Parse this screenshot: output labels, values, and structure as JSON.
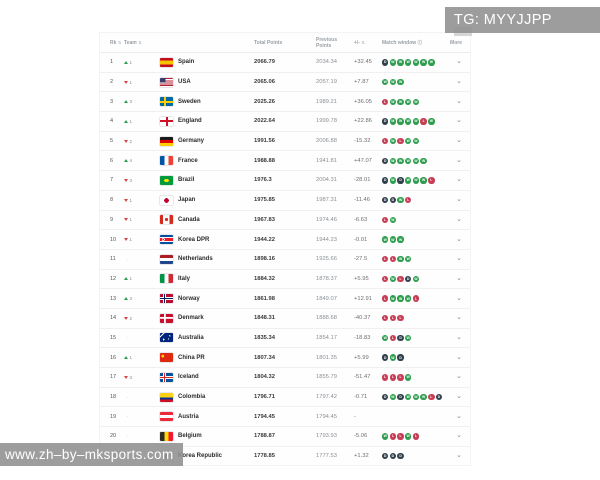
{
  "watermarks": {
    "top_right": "TG: MYYJJPP",
    "bottom_left": "www.zh–by–mksports.com"
  },
  "colors": {
    "win": "#2e9d4e",
    "loss": "#c63d54",
    "draw": "#31404b",
    "up": "#2e9d4e",
    "down": "#d64545"
  },
  "table": {
    "headers": {
      "rank": "Rk",
      "team": "Team",
      "total": "Total Points",
      "previous": "Previous Points",
      "plus_minus": "+/-",
      "window": "Match window",
      "more": "More"
    },
    "rows": [
      {
        "rank": "1",
        "move": "up",
        "move_n": "1",
        "flag": "es",
        "team": "Spain",
        "total": "2066.79",
        "prev": "2034.34",
        "pm": "+32.45",
        "window": [
          "D",
          "W",
          "W",
          "W",
          "W",
          "W",
          "W"
        ]
      },
      {
        "rank": "2",
        "move": "down",
        "move_n": "1",
        "flag": "us",
        "team": "USA",
        "total": "2065.06",
        "prev": "2057.19",
        "pm": "+7.87",
        "window": [
          "W",
          "W",
          "W"
        ]
      },
      {
        "rank": "3",
        "move": "up",
        "move_n": "3",
        "flag": "se",
        "team": "Sweden",
        "total": "2025.26",
        "prev": "1989.21",
        "pm": "+36.05",
        "window": [
          "L",
          "W",
          "W",
          "W",
          "W"
        ]
      },
      {
        "rank": "4",
        "move": "up",
        "move_n": "1",
        "flag": "en",
        "team": "England",
        "total": "2022.64",
        "prev": "1999.78",
        "pm": "+22.86",
        "window": [
          "D",
          "W",
          "W",
          "W",
          "W",
          "L",
          "W"
        ]
      },
      {
        "rank": "5",
        "move": "down",
        "move_n": "2",
        "flag": "de",
        "team": "Germany",
        "total": "1991.56",
        "prev": "2006.88",
        "pm": "-15.32",
        "window": [
          "L",
          "W",
          "L",
          "W",
          "W"
        ]
      },
      {
        "rank": "6",
        "move": "up",
        "move_n": "4",
        "flag": "fr",
        "team": "France",
        "total": "1988.88",
        "prev": "1941.81",
        "pm": "+47.07",
        "window": [
          "D",
          "W",
          "W",
          "W",
          "W",
          "W"
        ]
      },
      {
        "rank": "7",
        "move": "down",
        "move_n": "3",
        "flag": "br",
        "team": "Brazil",
        "total": "1976.3",
        "prev": "2004.31",
        "pm": "-28.01",
        "window": [
          "D",
          "W",
          "D",
          "W",
          "W",
          "W",
          "L"
        ]
      },
      {
        "rank": "8",
        "move": "down",
        "move_n": "1",
        "flag": "jp",
        "team": "Japan",
        "total": "1975.85",
        "prev": "1987.31",
        "pm": "-11.46",
        "window": [
          "D",
          "D",
          "W",
          "L"
        ]
      },
      {
        "rank": "9",
        "move": "down",
        "move_n": "1",
        "flag": "ca",
        "team": "Canada",
        "total": "1967.83",
        "prev": "1974.46",
        "pm": "-6.63",
        "window": [
          "L",
          "W"
        ]
      },
      {
        "rank": "10",
        "move": "down",
        "move_n": "1",
        "flag": "kp",
        "team": "Korea DPR",
        "total": "1944.22",
        "prev": "1944.23",
        "pm": "-0.01",
        "window": [
          "W",
          "W",
          "W"
        ]
      },
      {
        "rank": "11",
        "move": "none",
        "move_n": "",
        "flag": "nl",
        "team": "Netherlands",
        "total": "1898.16",
        "prev": "1925.66",
        "pm": "-27.5",
        "window": [
          "L",
          "L",
          "W",
          "W"
        ]
      },
      {
        "rank": "12",
        "move": "up",
        "move_n": "1",
        "flag": "it",
        "team": "Italy",
        "total": "1884.32",
        "prev": "1878.37",
        "pm": "+5.95",
        "window": [
          "L",
          "W",
          "L",
          "D",
          "W"
        ]
      },
      {
        "rank": "13",
        "move": "up",
        "move_n": "3",
        "flag": "no",
        "team": "Norway",
        "total": "1861.98",
        "prev": "1849.07",
        "pm": "+12.91",
        "window": [
          "L",
          "W",
          "W",
          "W",
          "L"
        ]
      },
      {
        "rank": "14",
        "move": "down",
        "move_n": "2",
        "flag": "dk",
        "team": "Denmark",
        "total": "1848.31",
        "prev": "1888.68",
        "pm": "-40.37",
        "window": [
          "L",
          "L",
          "L"
        ]
      },
      {
        "rank": "15",
        "move": "none",
        "move_n": "",
        "flag": "au",
        "team": "Australia",
        "total": "1835.34",
        "prev": "1854.17",
        "pm": "-18.83",
        "window": [
          "W",
          "L",
          "D",
          "W"
        ]
      },
      {
        "rank": "16",
        "move": "up",
        "move_n": "1",
        "flag": "cn",
        "team": "China PR",
        "total": "1807.34",
        "prev": "1801.35",
        "pm": "+5.99",
        "window": [
          "D",
          "W",
          "D"
        ]
      },
      {
        "rank": "17",
        "move": "down",
        "move_n": "3",
        "flag": "is",
        "team": "Iceland",
        "total": "1804.32",
        "prev": "1855.79",
        "pm": "-51.47",
        "window": [
          "L",
          "L",
          "L",
          "W"
        ]
      },
      {
        "rank": "18",
        "move": "none",
        "move_n": "",
        "flag": "co",
        "team": "Colombia",
        "total": "1796.71",
        "prev": "1797.42",
        "pm": "-0.71",
        "window": [
          "D",
          "W",
          "D",
          "W",
          "W",
          "W",
          "L",
          "D"
        ]
      },
      {
        "rank": "19",
        "move": "none",
        "move_n": "",
        "flag": "at",
        "team": "Austria",
        "total": "1794.45",
        "prev": "1794.45",
        "pm": "-",
        "window": []
      },
      {
        "rank": "20",
        "move": "none",
        "move_n": "",
        "flag": "be",
        "team": "Belgium",
        "total": "1788.87",
        "prev": "1793.93",
        "pm": "-5.06",
        "window": [
          "W",
          "L",
          "L",
          "W",
          "L"
        ]
      },
      {
        "rank": "21",
        "move": "none",
        "move_n": "",
        "flag": "kr",
        "team": "Korea Republic",
        "total": "1778.85",
        "prev": "1777.53",
        "pm": "+1.32",
        "window": [
          "D",
          "D",
          "D"
        ]
      }
    ]
  }
}
